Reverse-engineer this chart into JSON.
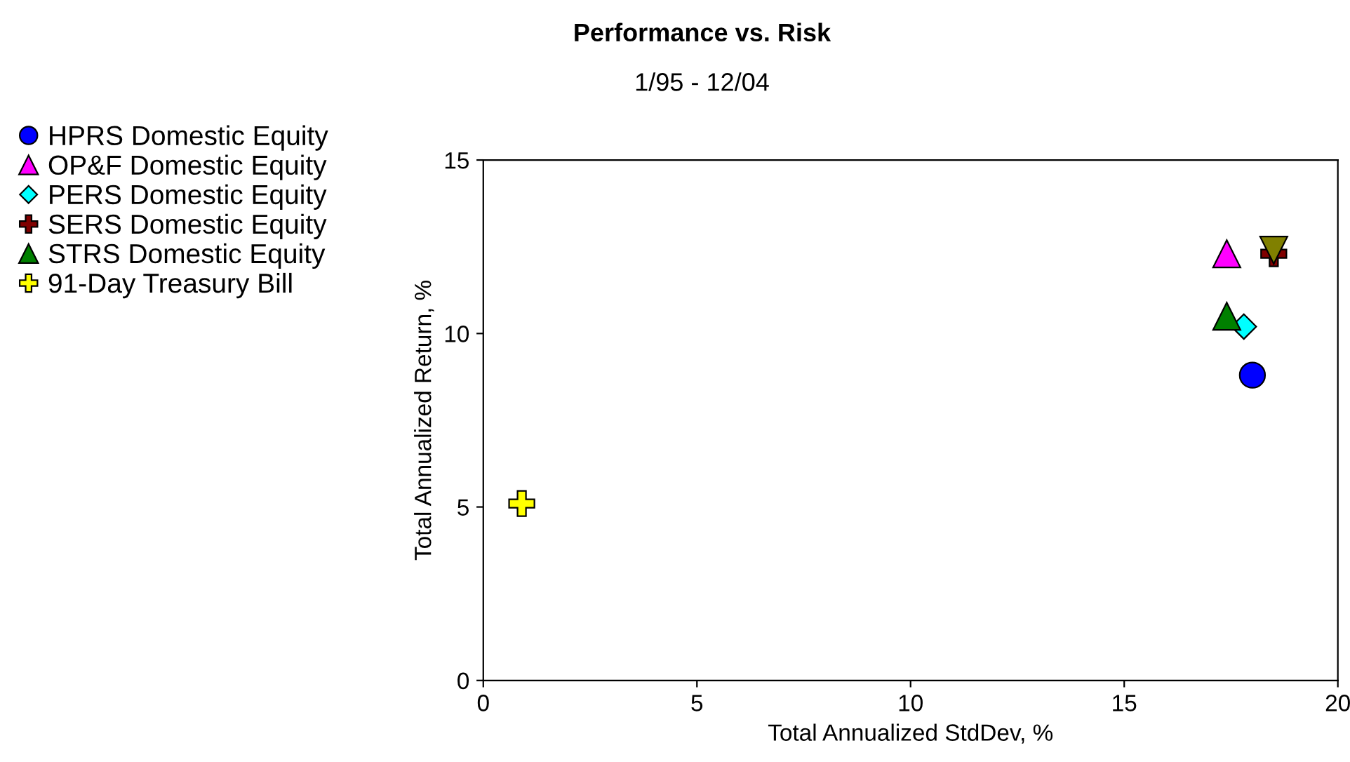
{
  "chart_data": {
    "type": "scatter",
    "title": "Performance vs. Risk",
    "subtitle": "1/95 - 12/04",
    "xlabel": "Total Annualized StdDev, %",
    "ylabel": "Total Annualized Return, %",
    "xlim": [
      0,
      20
    ],
    "xticks": [
      0,
      5,
      10,
      15,
      20
    ],
    "ylim": [
      0,
      15
    ],
    "yticks": [
      0,
      5,
      10,
      15
    ],
    "grid": false,
    "legend": "left",
    "series": [
      {
        "name": "HPRS Domestic Equity",
        "color": "#0000ff",
        "marker": "circle",
        "x": [
          18.0
        ],
        "values": [
          8.8
        ]
      },
      {
        "name": "OP&F Domestic Equity",
        "color": "#ff00ff",
        "marker": "triangle",
        "x": [
          17.4
        ],
        "values": [
          12.3
        ]
      },
      {
        "name": "PERS Domestic Equity",
        "color": "#00ffff",
        "marker": "diamond",
        "x": [
          17.8
        ],
        "values": [
          10.2
        ]
      },
      {
        "name": "SERS Domestic Equity",
        "color": "#800000",
        "marker": "cross",
        "x": [
          18.5
        ],
        "values": [
          12.3
        ]
      },
      {
        "name": "STRS Domestic Equity",
        "color": "#008000",
        "marker": "triangle",
        "x": [
          17.4
        ],
        "values": [
          10.5
        ]
      },
      {
        "color": "#808000",
        "marker": "triangle_down",
        "x": [
          18.5
        ],
        "values": [
          12.4
        ]
      },
      {
        "name": "91-Day Treasury Bill",
        "color": "#ffff00",
        "marker": "cross",
        "x": [
          0.9
        ],
        "values": [
          5.1
        ]
      }
    ]
  }
}
